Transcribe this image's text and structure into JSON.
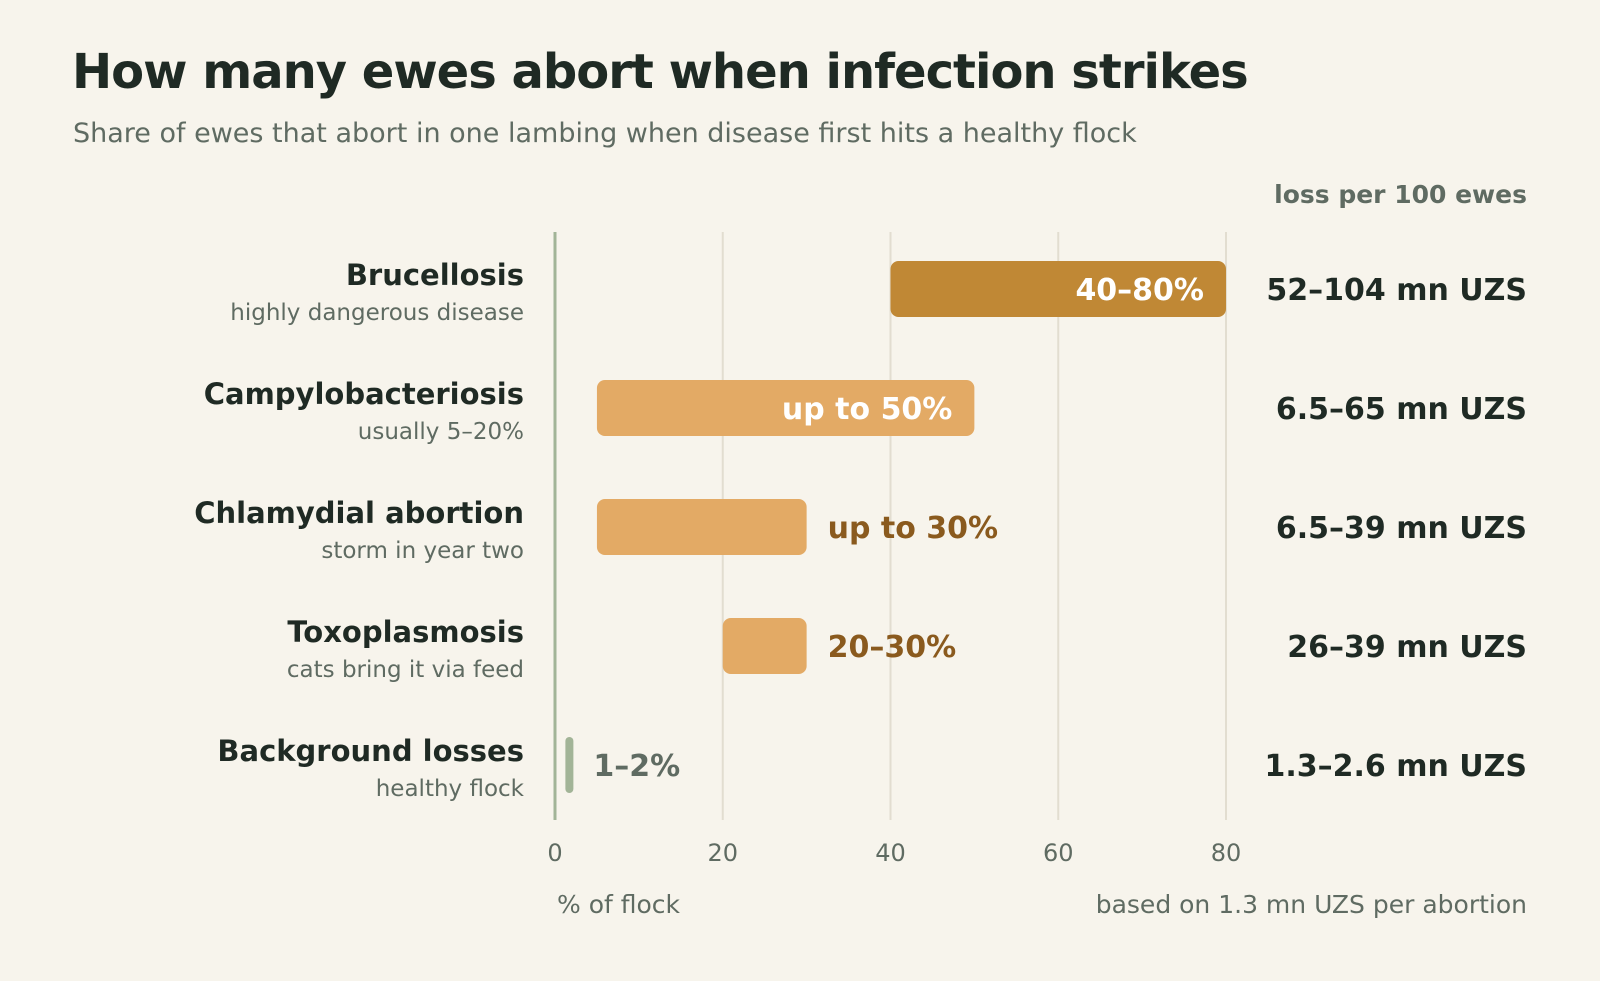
{
  "title": "How many ewes abort when infection strikes",
  "subtitle": "Share of ewes that abort in one lambing when disease first hits a healthy flock",
  "colors": {
    "brucellosis": "#c08835",
    "light": "#e3aa65",
    "background": "#a2b497",
    "label_on_bar": "#ffffff",
    "label_off_bar": "#8a5a1e",
    "label_muted": "#5f6b62",
    "grid": "#e2ddd0",
    "axis": "#a2b497"
  },
  "chart_data": {
    "type": "bar",
    "orientation": "horizontal",
    "range_bars": true,
    "xlabel": "% of flock",
    "xlim": [
      0,
      80
    ],
    "xticks": [
      0,
      20,
      40,
      60,
      80
    ],
    "grid": true,
    "loss_header": "loss per 100 ewes",
    "footnote": "based on 1.3 mn UZS per abortion",
    "categories": [
      {
        "name": "Brucellosis",
        "note": "highly dangerous disease",
        "low": 40,
        "high": 80,
        "label": "40–80%",
        "label_inside": true,
        "color": "brucellosis",
        "loss": "52–104 mn UZS",
        "loss_muted": false
      },
      {
        "name": "Campylobacteriosis",
        "note": "usually 5–20%",
        "low": 5,
        "high": 50,
        "label": "up to 50%",
        "label_inside": true,
        "color": "light",
        "loss": "6.5–65 mn UZS",
        "loss_muted": false
      },
      {
        "name": "Chlamydial abortion",
        "note": "storm in year two",
        "low": 5,
        "high": 30,
        "label": "up to 30%",
        "label_inside": false,
        "color": "light",
        "loss": "6.5–39 mn UZS",
        "loss_muted": false
      },
      {
        "name": "Toxoplasmosis",
        "note": "cats bring it via feed",
        "low": 20,
        "high": 30,
        "label": "20–30%",
        "label_inside": false,
        "color": "light",
        "loss": "26–39 mn UZS",
        "loss_muted": false
      },
      {
        "name": "Background losses",
        "note": "healthy flock",
        "low": 1,
        "high": 2,
        "label": "1–2%",
        "label_inside": false,
        "color": "background",
        "loss": "1.3–2.6 mn UZS",
        "loss_muted": true
      }
    ]
  }
}
